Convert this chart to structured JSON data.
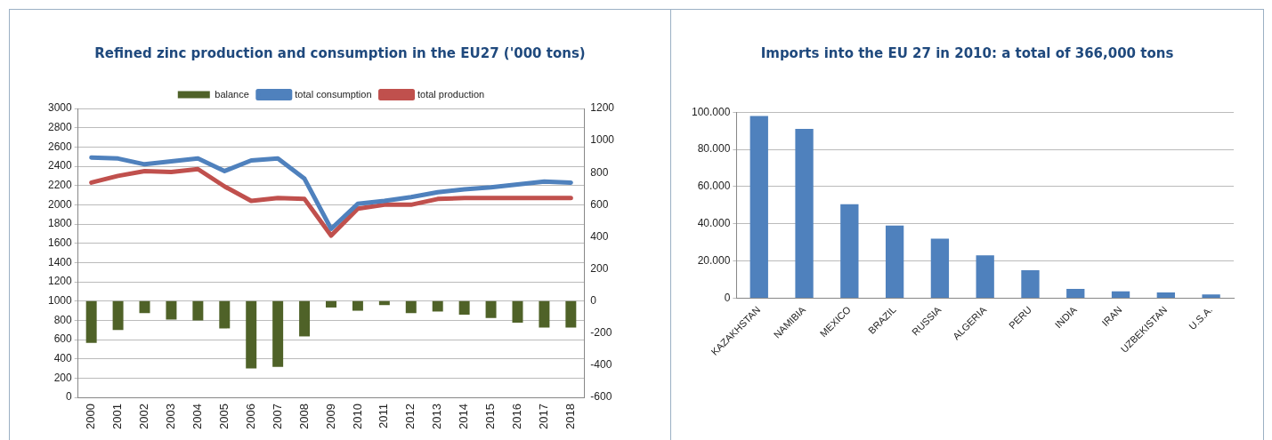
{
  "chart_data": [
    {
      "type": "bar",
      "title": "Refined zinc production and consumption in the EU27  ('000 tons)",
      "categories": [
        "2000",
        "2001",
        "2002",
        "2003",
        "2004",
        "2005",
        "2006",
        "2007",
        "2008",
        "2009",
        "2010",
        "2011",
        "2012",
        "2013",
        "2014",
        "2015",
        "2016",
        "2017",
        "2018"
      ],
      "series": [
        {
          "name": "balance",
          "type": "bar",
          "axis": "y2",
          "color": "#4f6228",
          "values": [
            -260,
            -180,
            -75,
            -115,
            -120,
            -170,
            -420,
            -410,
            -220,
            -40,
            -60,
            -25,
            -75,
            -65,
            -85,
            -105,
            -135,
            -165,
            -165
          ]
        },
        {
          "name": "total consumption",
          "type": "line",
          "color": "#4f81bd",
          "values": [
            2490,
            2480,
            2420,
            2450,
            2480,
            2350,
            2460,
            2480,
            2270,
            1750,
            2010,
            2040,
            2080,
            2130,
            2160,
            2180,
            2210,
            2240,
            2230
          ]
        },
        {
          "name": "total production",
          "type": "line",
          "color": "#c0504d",
          "values": [
            2230,
            2300,
            2350,
            2340,
            2370,
            2190,
            2040,
            2070,
            2060,
            1680,
            1960,
            2000,
            2000,
            2060,
            2070,
            2070,
            2070,
            2070,
            2070
          ]
        }
      ],
      "ylim": [
        0,
        3000
      ],
      "yticks": [
        0,
        200,
        400,
        600,
        800,
        1000,
        1200,
        1400,
        1600,
        1800,
        2000,
        2200,
        2400,
        2600,
        2800,
        3000
      ],
      "y2lim": [
        -600,
        1200
      ],
      "y2ticks": [
        -600,
        -400,
        -200,
        0,
        200,
        400,
        600,
        800,
        1000,
        1200
      ],
      "grid": "y",
      "legend": "top"
    },
    {
      "type": "bar",
      "title": "Imports into the EU 27 in 2010: a total of 366,000 tons",
      "categories": [
        "KAZAKHSTAN",
        "NAMIBIA",
        "MEXICO",
        "BRAZIL",
        "RUSSIA",
        "ALGERIA",
        "PERU",
        "INDIA",
        "IRAN",
        "UZBEKISTAN",
        "U.S.A."
      ],
      "values": [
        98000,
        91000,
        50500,
        39000,
        32000,
        23000,
        15000,
        5000,
        3700,
        3000,
        2000
      ],
      "color": "#4f81bd",
      "ylim": [
        0,
        100000
      ],
      "yticks": [
        0,
        {
          "value": 20000,
          "label": "20.000"
        },
        {
          "value": 40000,
          "label": "40.000"
        },
        {
          "value": 60000,
          "label": "60.000"
        },
        {
          "value": 80000,
          "label": "80.000"
        },
        {
          "value": 100000,
          "label": "100.000"
        }
      ],
      "grid": "y"
    }
  ]
}
